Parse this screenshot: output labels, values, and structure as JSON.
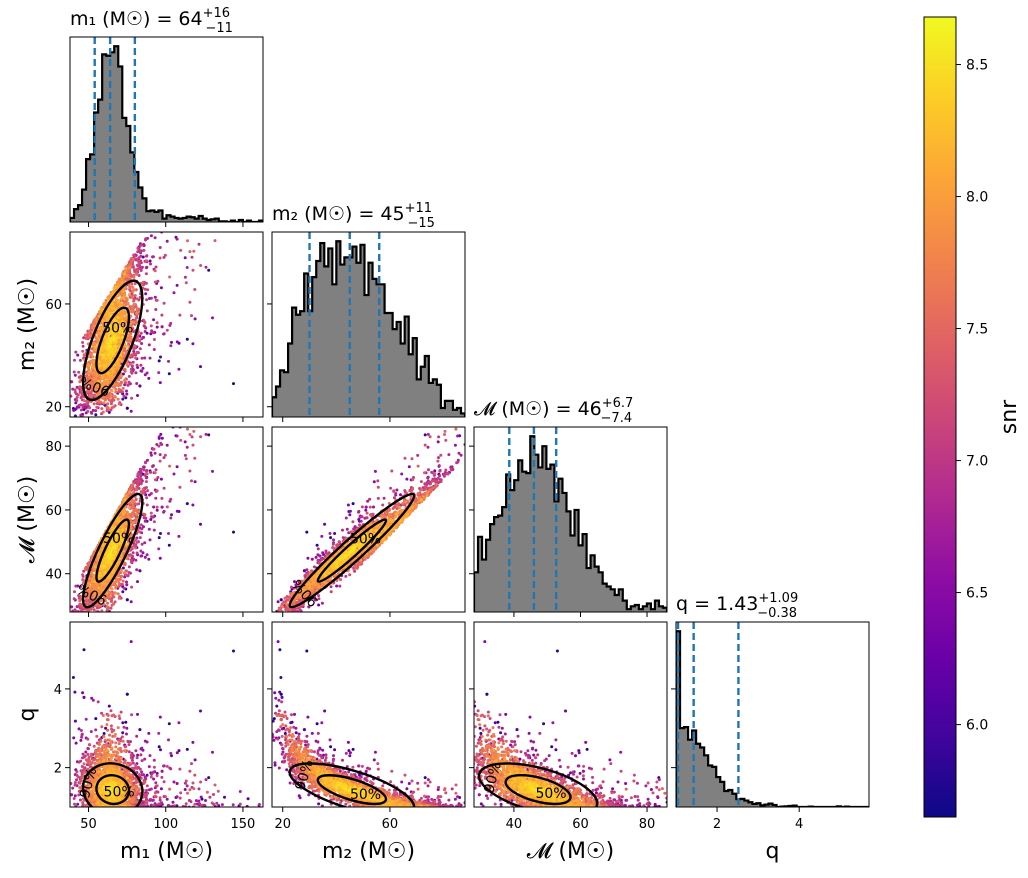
{
  "chart_data": {
    "type": "scatter",
    "description_kind": "corner-plot",
    "parameters": [
      {
        "key": "m1",
        "label": "m₁ (M☉)",
        "title": {
          "prefix": "m₁ (M☉) = ",
          "median": "64",
          "plus": "+16",
          "minus": "−11"
        },
        "range": [
          38,
          163
        ],
        "ticks": [
          50,
          100,
          150
        ],
        "quantiles": [
          54,
          64,
          80
        ],
        "hist": {
          "mean": 65,
          "sd": 9,
          "skew": 0.8
        }
      },
      {
        "key": "m2",
        "label": "m₂ (M☉)",
        "title": {
          "prefix": "m₂ (M☉) = ",
          "median": "45",
          "plus": "+11",
          "minus": "−15"
        },
        "range": [
          16,
          88
        ],
        "ticks": [
          20,
          60
        ],
        "quantiles": [
          30,
          45,
          56
        ],
        "hist": {
          "mean": 45,
          "sd": 8,
          "skew": -0.3
        }
      },
      {
        "key": "mc",
        "label": "𝓜 (M☉)",
        "title": {
          "prefix": "𝓜 (M☉) = ",
          "median": "46",
          "plus": "+6.7",
          "minus": "−7.4"
        },
        "range": [
          28,
          86
        ],
        "ticks": [
          40,
          60,
          80
        ],
        "quantiles": [
          38.6,
          46,
          52.7
        ],
        "hist": {
          "mean": 46,
          "sd": 4,
          "skew": 0.2
        }
      },
      {
        "key": "q",
        "label": "q",
        "title": {
          "prefix": "q = ",
          "median": "1.43",
          "plus": "+1.09",
          "minus": "−0.38"
        },
        "range": [
          1.0,
          5.7
        ],
        "ticks": [
          2,
          4
        ],
        "quantiles": [
          1.05,
          1.43,
          2.52
        ],
        "hist": {
          "mean": 1.3,
          "sd": 0.8,
          "skew": 2.0
        }
      }
    ],
    "ylabels": [
      "m₂ (M☉)",
      "𝓜 (M☉)",
      "q"
    ],
    "contour_labels": [
      "50%",
      "90%"
    ],
    "colorbar": {
      "label": "snr",
      "range": [
        5.65,
        8.68
      ],
      "ticks": [
        "6.0",
        "6.5",
        "7.0",
        "7.5",
        "8.0",
        "8.5"
      ]
    },
    "hist_fill": "#808080",
    "quantile_color": "#1f77b4",
    "contour_color": "#000000"
  }
}
